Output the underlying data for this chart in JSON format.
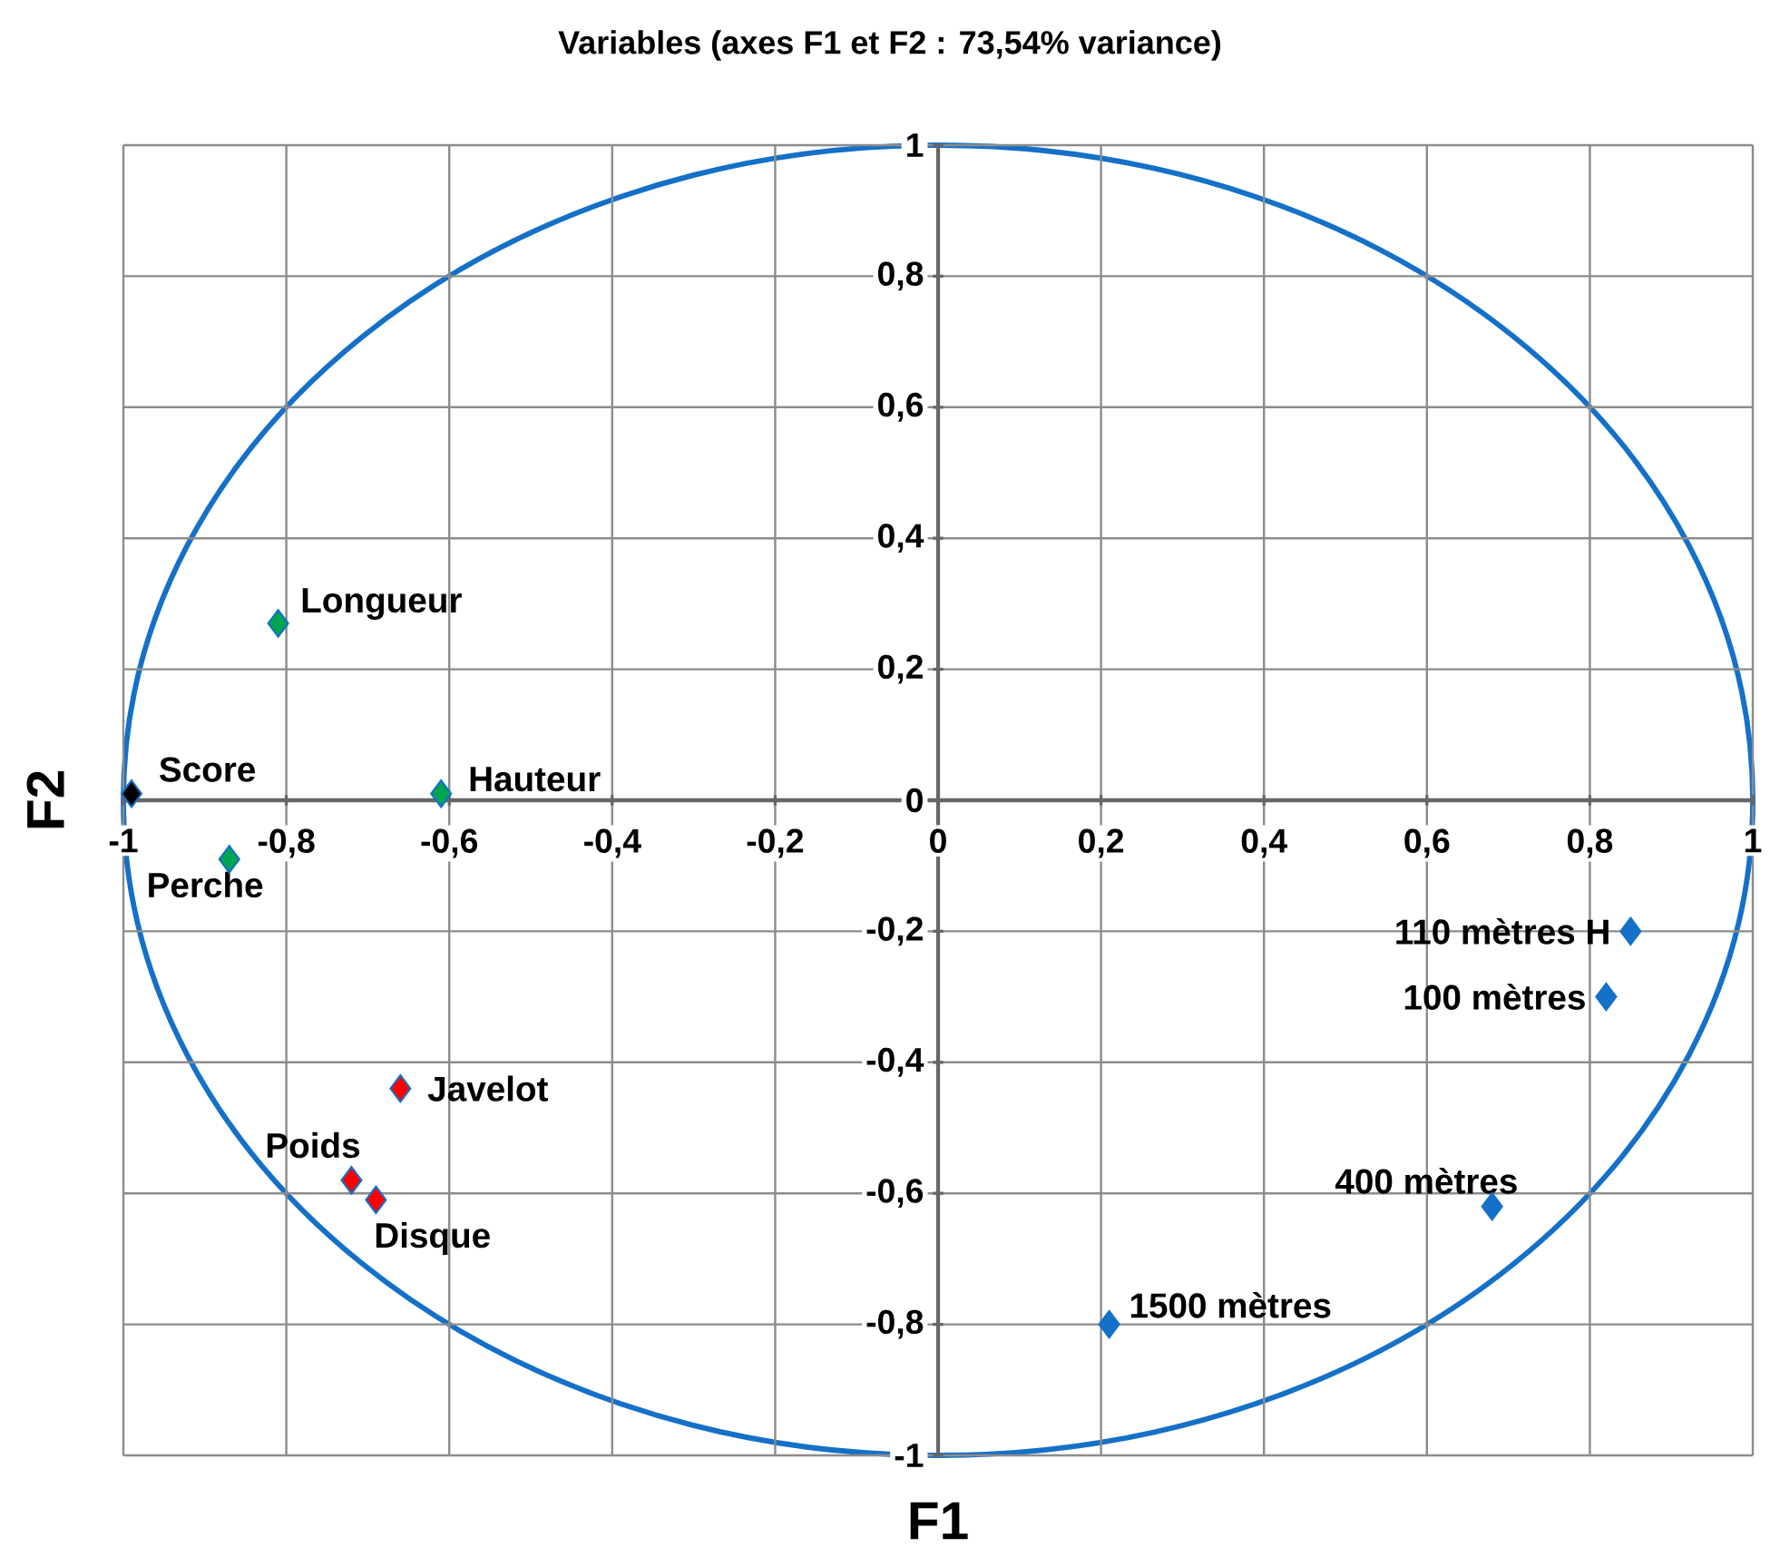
{
  "chart_data": {
    "type": "scatter",
    "title": "Variables (axes F1 et F2 : 73,54% variance)",
    "xlabel": "F1",
    "ylabel": "F2",
    "series": [
      {
        "x": [
          -0.81,
          -0.99,
          -0.61,
          -0.87,
          -0.66,
          -0.72,
          -0.69,
          0.85,
          0.82,
          0.68,
          0.21
        ],
        "values": [
          0.27,
          0.01,
          0.01,
          -0.09,
          -0.44,
          -0.58,
          -0.61,
          -0.2,
          -0.3,
          -0.62,
          -0.8
        ],
        "colors": [
          "#00a550",
          "#000000",
          "#00a550",
          "#00a550",
          "#ff0000",
          "#ff0000",
          "#ff0000",
          "#1570c8",
          "#1570c8",
          "#1570c8",
          "#1570c8"
        ]
      }
    ],
    "marker": "diamond",
    "grid": true,
    "xlim": [
      -1,
      1
    ],
    "ylim": [
      -1,
      1
    ],
    "xticks": [
      {
        "value": -1,
        "label": "-1"
      },
      {
        "value": -0.8,
        "label": "-0,8"
      },
      {
        "value": -0.6,
        "label": "-0,6"
      },
      {
        "value": -0.4,
        "label": "-0,4"
      },
      {
        "value": -0.2,
        "label": "-0,2"
      },
      {
        "value": 0,
        "label": "0"
      },
      {
        "value": 0.2,
        "label": "0,2"
      },
      {
        "value": 0.4,
        "label": "0,4"
      },
      {
        "value": 0.6,
        "label": "0,6"
      },
      {
        "value": 0.8,
        "label": "0,8"
      },
      {
        "value": 1,
        "label": "1"
      }
    ],
    "yticks": [
      {
        "value": -1,
        "label": "-1"
      },
      {
        "value": -0.8,
        "label": "-0,8"
      },
      {
        "value": -0.6,
        "label": "-0,6"
      },
      {
        "value": -0.4,
        "label": "-0,4"
      },
      {
        "value": -0.2,
        "label": "-0,2"
      },
      {
        "value": 0,
        "label": "0"
      },
      {
        "value": 0.2,
        "label": "0,2"
      },
      {
        "value": 0.4,
        "label": "0,4"
      },
      {
        "value": 0.6,
        "label": "0,6"
      },
      {
        "value": 0.8,
        "label": "0,8"
      },
      {
        "value": 1,
        "label": "1"
      }
    ],
    "annotations": [
      {
        "text": "Longueur",
        "x": -0.81,
        "y": 0.27
      },
      {
        "text": "Score",
        "x": -0.99,
        "y": 0.01
      },
      {
        "text": "Hauteur",
        "x": -0.61,
        "y": 0.01
      },
      {
        "text": "Perche",
        "x": -0.87,
        "y": -0.09
      },
      {
        "text": "Javelot",
        "x": -0.66,
        "y": -0.44
      },
      {
        "text": "Poids",
        "x": -0.72,
        "y": -0.58
      },
      {
        "text": "Disque",
        "x": -0.69,
        "y": -0.61
      },
      {
        "text": "110 mètres H",
        "x": 0.85,
        "y": -0.2
      },
      {
        "text": "100 mètres",
        "x": 0.82,
        "y": -0.3
      },
      {
        "text": "400 mètres",
        "x": 0.68,
        "y": -0.62
      },
      {
        "text": "1500 mètres",
        "x": 0.21,
        "y": -0.8
      }
    ]
  }
}
